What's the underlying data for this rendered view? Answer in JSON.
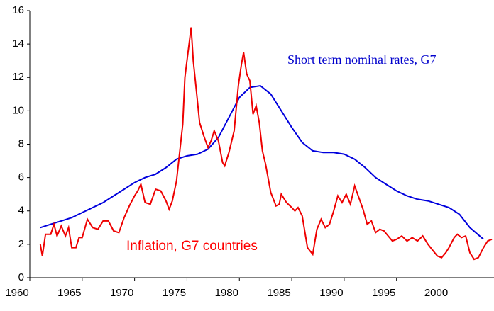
{
  "chart_data": {
    "type": "line",
    "xlim": [
      1960,
      2004.3
    ],
    "xticks": [
      1960,
      1965,
      1970,
      1975,
      1980,
      1985,
      1990,
      1995,
      2000
    ],
    "ylim": [
      0,
      16
    ],
    "yticks": [
      0,
      2,
      4,
      6,
      8,
      10,
      12,
      14,
      16
    ],
    "annotations": [
      {
        "text": "Short term nominal rates, G7",
        "color": "#0000cc"
      },
      {
        "text": "Inflation, G7 countries",
        "color": "#ff0000"
      }
    ],
    "series": [
      {
        "name": "Short term nominal rates, G7",
        "color": "#0000dd",
        "x": [
          1961,
          1962,
          1963,
          1964,
          1965,
          1966,
          1967,
          1968,
          1969,
          1970,
          1971,
          1972,
          1973,
          1974,
          1975,
          1976,
          1977,
          1978,
          1979,
          1980,
          1981,
          1982,
          1983,
          1984,
          1985,
          1986,
          1987,
          1988,
          1989,
          1990,
          1991,
          1992,
          1993,
          1994,
          1995,
          1996,
          1997,
          1998,
          1999,
          2000,
          2001,
          2002,
          2003.3
        ],
        "values": [
          3.0,
          3.2,
          3.4,
          3.6,
          3.9,
          4.2,
          4.5,
          4.9,
          5.3,
          5.7,
          6.0,
          6.2,
          6.6,
          7.1,
          7.3,
          7.4,
          7.7,
          8.4,
          9.6,
          10.8,
          11.4,
          11.5,
          11.0,
          10.0,
          9.0,
          8.1,
          7.6,
          7.5,
          7.5,
          7.4,
          7.1,
          6.6,
          6.0,
          5.6,
          5.2,
          4.9,
          4.7,
          4.6,
          4.4,
          4.2,
          3.8,
          3.0,
          2.3
        ]
      },
      {
        "name": "Inflation, G7 countries",
        "color": "#ee0000",
        "x": [
          1961.0,
          1961.2,
          1961.5,
          1962,
          1962.3,
          1962.6,
          1963,
          1963.4,
          1963.7,
          1964,
          1964.4,
          1964.7,
          1965,
          1965.5,
          1966,
          1966.5,
          1967,
          1967.5,
          1968,
          1968.5,
          1969,
          1969.5,
          1970,
          1970.3,
          1970.6,
          1971,
          1971.5,
          1972,
          1972.5,
          1973,
          1973.3,
          1973.6,
          1974,
          1974.3,
          1974.6,
          1974.8,
          1975,
          1975.2,
          1975.4,
          1975.6,
          1975.9,
          1976.2,
          1976.6,
          1977,
          1977.3,
          1977.6,
          1978,
          1978.4,
          1978.6,
          1979,
          1979.5,
          1979.9,
          1980.2,
          1980.4,
          1980.7,
          1981,
          1981.3,
          1981.6,
          1981.9,
          1982.2,
          1982.5,
          1983,
          1983.5,
          1983.8,
          1984,
          1984.5,
          1985,
          1985.3,
          1985.6,
          1986,
          1986.5,
          1987,
          1987.4,
          1987.8,
          1988.2,
          1988.6,
          1989,
          1989.4,
          1989.8,
          1990.2,
          1990.6,
          1991,
          1991.4,
          1991.8,
          1992.2,
          1992.6,
          1993,
          1993.4,
          1993.8,
          1994.2,
          1994.6,
          1995,
          1995.5,
          1996,
          1996.5,
          1997,
          1997.5,
          1998,
          1998.5,
          1998.9,
          1999.3,
          1999.7,
          2000,
          2000.5,
          2000.8,
          2001.2,
          2001.6,
          2002,
          2002.4,
          2002.8,
          2003.3,
          2003.7,
          2004.1
        ],
        "values": [
          2.0,
          1.3,
          2.6,
          2.6,
          3.2,
          2.5,
          3.1,
          2.5,
          3.0,
          1.8,
          1.8,
          2.4,
          2.4,
          3.5,
          3.0,
          2.9,
          3.4,
          3.4,
          2.8,
          2.7,
          3.6,
          4.3,
          4.9,
          5.2,
          5.6,
          4.5,
          4.4,
          5.3,
          5.2,
          4.6,
          4.1,
          4.6,
          5.8,
          7.5,
          9.2,
          12.0,
          13.0,
          14.0,
          15.0,
          13.0,
          11.2,
          9.3,
          8.5,
          7.8,
          8.2,
          8.8,
          8.2,
          6.9,
          6.7,
          7.5,
          8.8,
          11.5,
          12.8,
          13.5,
          12.2,
          11.8,
          9.8,
          10.3,
          9.3,
          7.6,
          6.8,
          5.1,
          4.3,
          4.4,
          5.0,
          4.5,
          4.2,
          4.0,
          4.2,
          3.7,
          1.8,
          1.4,
          2.9,
          3.5,
          3.0,
          3.2,
          4.0,
          4.9,
          4.5,
          5.0,
          4.4,
          5.5,
          4.8,
          4.1,
          3.2,
          3.4,
          2.7,
          2.9,
          2.8,
          2.5,
          2.2,
          2.3,
          2.5,
          2.2,
          2.4,
          2.2,
          2.5,
          2.0,
          1.6,
          1.3,
          1.2,
          1.5,
          1.8,
          2.4,
          2.6,
          2.4,
          2.5,
          1.5,
          1.1,
          1.2,
          1.8,
          2.2,
          2.3
        ]
      }
    ]
  }
}
